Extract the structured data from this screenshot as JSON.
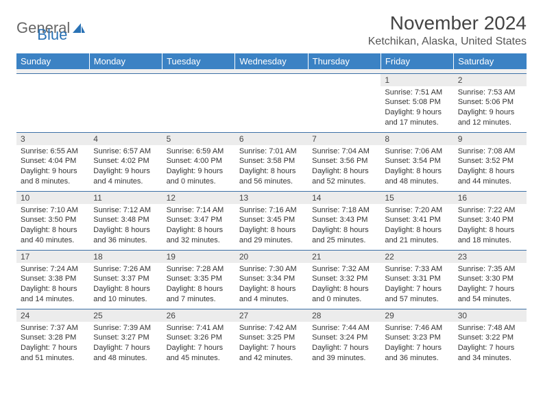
{
  "logo": {
    "text1": "General",
    "text2": "Blue"
  },
  "title": "November 2024",
  "location": "Ketchikan, Alaska, United States",
  "colors": {
    "header_bg": "#3b82c4",
    "header_text": "#ffffff",
    "daynum_bg": "#ececec",
    "row_border": "#3b6fa5",
    "logo_blue": "#2a72b5"
  },
  "dayNames": [
    "Sunday",
    "Monday",
    "Tuesday",
    "Wednesday",
    "Thursday",
    "Friday",
    "Saturday"
  ],
  "weeks": [
    [
      null,
      null,
      null,
      null,
      null,
      {
        "n": "1",
        "sunrise": "7:51 AM",
        "sunset": "5:08 PM",
        "dl": "9 hours and 17 minutes."
      },
      {
        "n": "2",
        "sunrise": "7:53 AM",
        "sunset": "5:06 PM",
        "dl": "9 hours and 12 minutes."
      }
    ],
    [
      {
        "n": "3",
        "sunrise": "6:55 AM",
        "sunset": "4:04 PM",
        "dl": "9 hours and 8 minutes."
      },
      {
        "n": "4",
        "sunrise": "6:57 AM",
        "sunset": "4:02 PM",
        "dl": "9 hours and 4 minutes."
      },
      {
        "n": "5",
        "sunrise": "6:59 AM",
        "sunset": "4:00 PM",
        "dl": "9 hours and 0 minutes."
      },
      {
        "n": "6",
        "sunrise": "7:01 AM",
        "sunset": "3:58 PM",
        "dl": "8 hours and 56 minutes."
      },
      {
        "n": "7",
        "sunrise": "7:04 AM",
        "sunset": "3:56 PM",
        "dl": "8 hours and 52 minutes."
      },
      {
        "n": "8",
        "sunrise": "7:06 AM",
        "sunset": "3:54 PM",
        "dl": "8 hours and 48 minutes."
      },
      {
        "n": "9",
        "sunrise": "7:08 AM",
        "sunset": "3:52 PM",
        "dl": "8 hours and 44 minutes."
      }
    ],
    [
      {
        "n": "10",
        "sunrise": "7:10 AM",
        "sunset": "3:50 PM",
        "dl": "8 hours and 40 minutes."
      },
      {
        "n": "11",
        "sunrise": "7:12 AM",
        "sunset": "3:48 PM",
        "dl": "8 hours and 36 minutes."
      },
      {
        "n": "12",
        "sunrise": "7:14 AM",
        "sunset": "3:47 PM",
        "dl": "8 hours and 32 minutes."
      },
      {
        "n": "13",
        "sunrise": "7:16 AM",
        "sunset": "3:45 PM",
        "dl": "8 hours and 29 minutes."
      },
      {
        "n": "14",
        "sunrise": "7:18 AM",
        "sunset": "3:43 PM",
        "dl": "8 hours and 25 minutes."
      },
      {
        "n": "15",
        "sunrise": "7:20 AM",
        "sunset": "3:41 PM",
        "dl": "8 hours and 21 minutes."
      },
      {
        "n": "16",
        "sunrise": "7:22 AM",
        "sunset": "3:40 PM",
        "dl": "8 hours and 18 minutes."
      }
    ],
    [
      {
        "n": "17",
        "sunrise": "7:24 AM",
        "sunset": "3:38 PM",
        "dl": "8 hours and 14 minutes."
      },
      {
        "n": "18",
        "sunrise": "7:26 AM",
        "sunset": "3:37 PM",
        "dl": "8 hours and 10 minutes."
      },
      {
        "n": "19",
        "sunrise": "7:28 AM",
        "sunset": "3:35 PM",
        "dl": "8 hours and 7 minutes."
      },
      {
        "n": "20",
        "sunrise": "7:30 AM",
        "sunset": "3:34 PM",
        "dl": "8 hours and 4 minutes."
      },
      {
        "n": "21",
        "sunrise": "7:32 AM",
        "sunset": "3:32 PM",
        "dl": "8 hours and 0 minutes."
      },
      {
        "n": "22",
        "sunrise": "7:33 AM",
        "sunset": "3:31 PM",
        "dl": "7 hours and 57 minutes."
      },
      {
        "n": "23",
        "sunrise": "7:35 AM",
        "sunset": "3:30 PM",
        "dl": "7 hours and 54 minutes."
      }
    ],
    [
      {
        "n": "24",
        "sunrise": "7:37 AM",
        "sunset": "3:28 PM",
        "dl": "7 hours and 51 minutes."
      },
      {
        "n": "25",
        "sunrise": "7:39 AM",
        "sunset": "3:27 PM",
        "dl": "7 hours and 48 minutes."
      },
      {
        "n": "26",
        "sunrise": "7:41 AM",
        "sunset": "3:26 PM",
        "dl": "7 hours and 45 minutes."
      },
      {
        "n": "27",
        "sunrise": "7:42 AM",
        "sunset": "3:25 PM",
        "dl": "7 hours and 42 minutes."
      },
      {
        "n": "28",
        "sunrise": "7:44 AM",
        "sunset": "3:24 PM",
        "dl": "7 hours and 39 minutes."
      },
      {
        "n": "29",
        "sunrise": "7:46 AM",
        "sunset": "3:23 PM",
        "dl": "7 hours and 36 minutes."
      },
      {
        "n": "30",
        "sunrise": "7:48 AM",
        "sunset": "3:22 PM",
        "dl": "7 hours and 34 minutes."
      }
    ]
  ],
  "labels": {
    "sunrise": "Sunrise: ",
    "sunset": "Sunset: ",
    "daylight": "Daylight: "
  }
}
